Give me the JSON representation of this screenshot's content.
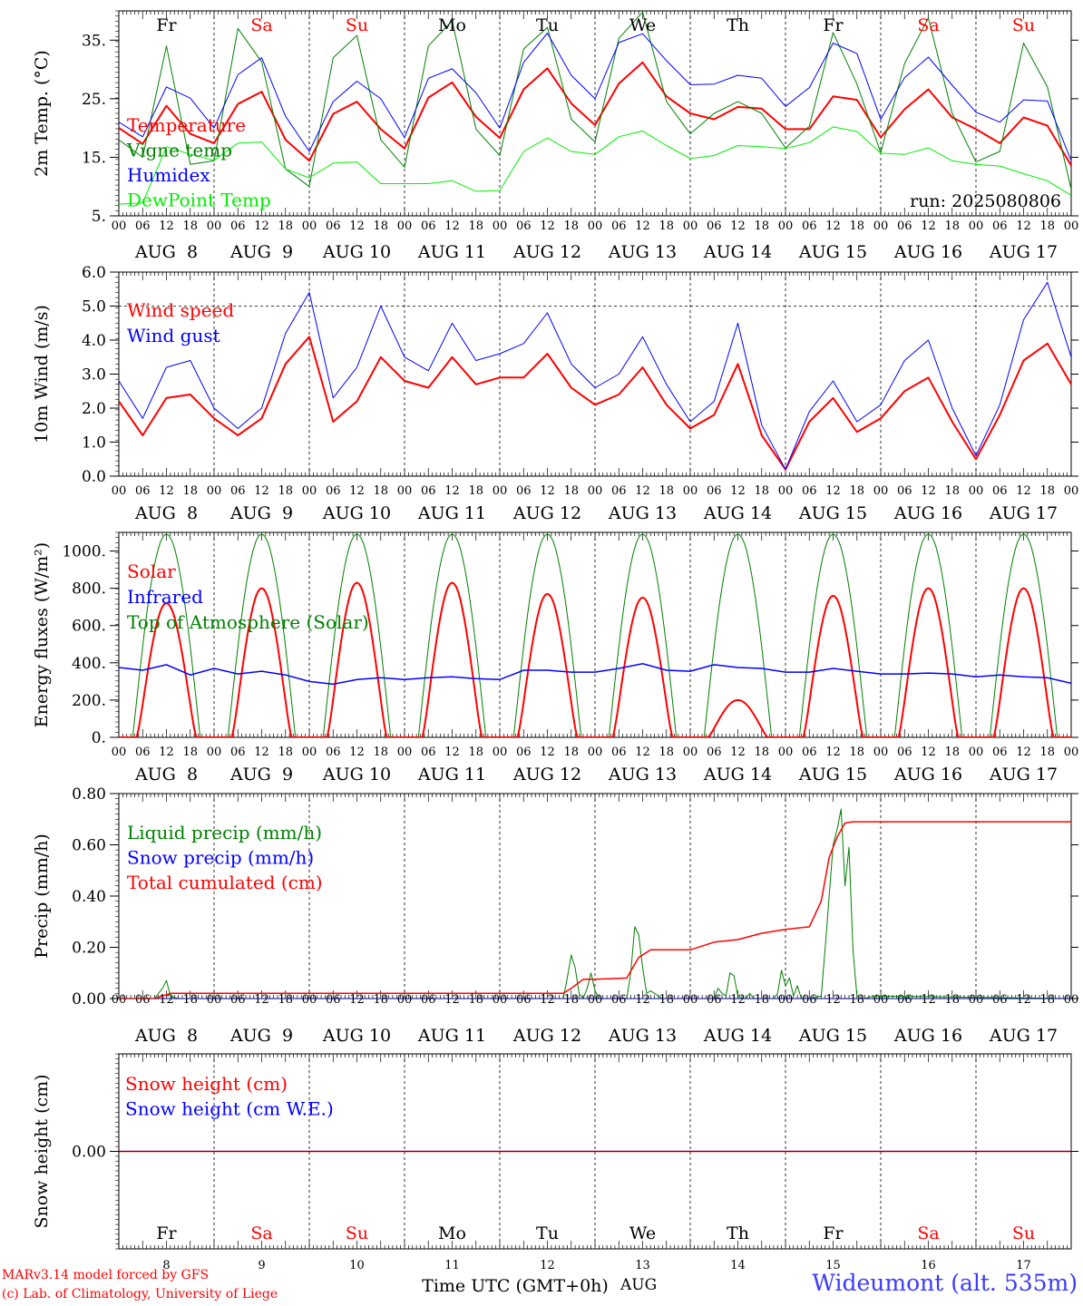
{
  "chart_data": [
    {
      "type": "line",
      "ylabel": "2m Temp. (°C)",
      "ylim": [
        5,
        40
      ],
      "yticks": [
        {
          "v": 5,
          "label": "5."
        },
        {
          "v": 15,
          "label": "15."
        },
        {
          "v": 25,
          "label": "25."
        },
        {
          "v": 35,
          "label": "35."
        }
      ],
      "annotation": "run: 2025080806",
      "day_names": [
        "Fr",
        "Sa",
        "Su",
        "Mo",
        "Tu",
        "We",
        "Th",
        "Fr",
        "Sa",
        "Su"
      ],
      "day_colors": [
        "#000000",
        "#ff0000",
        "#ff0000",
        "#000000",
        "#000000",
        "#000000",
        "#000000",
        "#000000",
        "#ff0000",
        "#ff0000"
      ],
      "x_hours": [
        0,
        6,
        12,
        18,
        24,
        30,
        36,
        42,
        48,
        54,
        60,
        66,
        72,
        78,
        84,
        90,
        96,
        102,
        108,
        114,
        120,
        126,
        132,
        138,
        144,
        150,
        156,
        162,
        168,
        174,
        180,
        186,
        192,
        198,
        204,
        210,
        216,
        222,
        228,
        234,
        240
      ],
      "series": [
        {
          "name": "Temperature",
          "color": "#ff0000",
          "width": 2,
          "values": [
            20,
            17.3,
            23.8,
            19,
            17.4,
            24.1,
            26.2,
            18,
            14.4,
            22.4,
            24.5,
            19.8,
            16.5,
            25.2,
            27.8,
            21.9,
            18.3,
            26.6,
            30.2,
            24.2,
            20.5,
            27.6,
            31.2,
            25.4,
            22.5,
            21.5,
            23.6,
            23.3,
            19.8,
            19.8,
            25.4,
            24.8,
            18.4,
            23.2,
            26.6,
            21.8,
            19.8,
            17.4,
            21.8,
            20.4,
            13.6
          ]
        },
        {
          "name": "Vigne temp",
          "color": "#008000",
          "width": 1,
          "values": [
            18,
            15,
            34,
            13.8,
            14.4,
            37,
            31.3,
            13,
            10,
            32,
            35.8,
            18,
            13.3,
            34,
            38.3,
            19.8,
            15.3,
            33.5,
            37.2,
            21.5,
            17.6,
            35.3,
            39.8,
            24.5,
            19,
            22.5,
            24.5,
            22.5,
            16.6,
            20.3,
            36.3,
            27.5,
            15.8,
            31,
            38.8,
            22.5,
            14.2,
            16,
            34.5,
            27,
            9.5
          ]
        },
        {
          "name": "Humidex",
          "color": "#0000ff",
          "width": 1,
          "values": [
            21,
            18.5,
            27,
            25.1,
            20,
            29.1,
            32,
            22,
            16,
            24.5,
            28,
            25,
            18.4,
            28.5,
            30.1,
            26,
            20,
            31.2,
            36.2,
            29,
            25,
            34.6,
            36.1,
            31.5,
            27.4,
            27.5,
            29,
            28.5,
            23.7,
            26.9,
            34.5,
            32.7,
            21.5,
            28.6,
            32.1,
            27.3,
            22.7,
            21,
            24.8,
            24.6,
            14.4
          ]
        },
        {
          "name": "DewPoint Temp",
          "color": "#00ee00",
          "width": 1,
          "values": [
            7,
            7.2,
            16.8,
            15.5,
            14.5,
            17.4,
            17.6,
            13,
            11.5,
            14,
            14.2,
            10.5,
            10.5,
            10.5,
            11,
            9.2,
            9.3,
            16,
            18.3,
            16,
            15.5,
            18.5,
            19.5,
            17,
            14.8,
            15.3,
            17,
            16.8,
            16.5,
            17.5,
            20.2,
            19.4,
            15.7,
            15.5,
            16.6,
            14.4,
            13.8,
            13.5,
            12.2,
            11,
            8.5
          ]
        }
      ]
    },
    {
      "type": "line",
      "ylabel": "10m Wind (m/s)",
      "ylim": [
        0,
        6
      ],
      "yticks": [
        {
          "v": 0,
          "label": "0.0"
        },
        {
          "v": 1,
          "label": "1.0"
        },
        {
          "v": 2,
          "label": "2.0"
        },
        {
          "v": 3,
          "label": "3.0"
        },
        {
          "v": 4,
          "label": "4.0"
        },
        {
          "v": 5,
          "label": "5.0"
        },
        {
          "v": 6,
          "label": "6.0"
        }
      ],
      "reference_line": 5,
      "x_hours": [
        0,
        6,
        12,
        18,
        24,
        30,
        36,
        42,
        48,
        54,
        60,
        66,
        72,
        78,
        84,
        90,
        96,
        102,
        108,
        114,
        120,
        126,
        132,
        138,
        144,
        150,
        156,
        162,
        168,
        174,
        180,
        186,
        192,
        198,
        204,
        210,
        216,
        222,
        228,
        234,
        240
      ],
      "series": [
        {
          "name": "Wind speed",
          "color": "#ff0000",
          "width": 2,
          "values": [
            2.2,
            1.2,
            2.3,
            2.4,
            1.7,
            1.2,
            1.7,
            3.3,
            4.1,
            1.6,
            2.2,
            3.5,
            2.8,
            2.6,
            3.5,
            2.7,
            2.9,
            2.9,
            3.6,
            2.6,
            2.1,
            2.4,
            3.2,
            2.1,
            1.4,
            1.8,
            3.3,
            1.2,
            0.2,
            1.6,
            2.3,
            1.3,
            1.7,
            2.5,
            2.9,
            1.6,
            0.5,
            1.8,
            3.4,
            3.9,
            2.7
          ]
        },
        {
          "name": "Wind gust",
          "color": "#0000ff",
          "width": 1,
          "values": [
            2.8,
            1.7,
            3.2,
            3.4,
            2,
            1.4,
            2,
            4.2,
            5.4,
            2.3,
            3.2,
            5,
            3.5,
            3.1,
            4.5,
            3.4,
            3.6,
            3.9,
            4.8,
            3.3,
            2.6,
            3,
            4.1,
            2.7,
            1.6,
            2.2,
            4.5,
            1.5,
            0.2,
            1.9,
            2.8,
            1.6,
            2.1,
            3.4,
            4,
            2,
            0.6,
            2.1,
            4.6,
            5.7,
            3.5
          ]
        }
      ]
    },
    {
      "type": "line",
      "ylabel": "Energy fluxes (W/m²)",
      "ylim": [
        0,
        1100
      ],
      "yticks": [
        {
          "v": 0,
          "label": "0."
        },
        {
          "v": 200,
          "label": "200."
        },
        {
          "v": 400,
          "label": "400."
        },
        {
          "v": 600,
          "label": "600."
        },
        {
          "v": 800,
          "label": "800."
        },
        {
          "v": 1000,
          "label": "1000."
        }
      ],
      "toa_peak": 1090,
      "solar_peaks": [
        720,
        800,
        830,
        830,
        770,
        750,
        200,
        760,
        800,
        800
      ],
      "infrared": {
        "x_hours": [
          0,
          6,
          12,
          18,
          24,
          30,
          36,
          42,
          48,
          54,
          60,
          66,
          72,
          78,
          84,
          90,
          96,
          102,
          108,
          114,
          120,
          126,
          132,
          138,
          144,
          150,
          156,
          162,
          168,
          174,
          180,
          186,
          192,
          198,
          204,
          210,
          216,
          222,
          228,
          234,
          240
        ],
        "values": [
          375,
          360,
          390,
          335,
          370,
          340,
          355,
          335,
          300,
          285,
          310,
          320,
          310,
          320,
          325,
          315,
          310,
          360,
          360,
          350,
          350,
          370,
          395,
          360,
          355,
          390,
          375,
          370,
          350,
          350,
          370,
          355,
          340,
          340,
          345,
          340,
          325,
          335,
          325,
          320,
          290
        ]
      },
      "series": [
        {
          "name": "Solar",
          "color": "#ff0000"
        },
        {
          "name": "Infrared",
          "color": "#0000ff"
        },
        {
          "name": "Top of Atmosphere (Solar)",
          "color": "#008000"
        }
      ]
    },
    {
      "type": "line",
      "ylabel": "Precip (mm/h)",
      "ylim": [
        0,
        0.8
      ],
      "yticks": [
        {
          "v": 0,
          "label": "0.00"
        },
        {
          "v": 0.2,
          "label": "0.20"
        },
        {
          "v": 0.4,
          "label": "0.40"
        },
        {
          "v": 0.6,
          "label": "0.60"
        },
        {
          "v": 0.8,
          "label": "0.80"
        }
      ],
      "series": [
        {
          "name": "Liquid precip (mm/h)",
          "color": "#008000",
          "width": 1,
          "x_hours": [
            0,
            9,
            11,
            12,
            13,
            15,
            24,
            112,
            113,
            114,
            115,
            116,
            117,
            118,
            119,
            120,
            121,
            122,
            128,
            129,
            130,
            131,
            132,
            133,
            134,
            136,
            137,
            150,
            151,
            152,
            153,
            154,
            155,
            156,
            157,
            158,
            159,
            160,
            161,
            162,
            165,
            166,
            167,
            168,
            169,
            170,
            171,
            172,
            174,
            177,
            178,
            180,
            181,
            182,
            183,
            184,
            185,
            186,
            187,
            188,
            190,
            240
          ],
          "values": [
            0,
            0,
            0.04,
            0.07,
            0.01,
            0,
            0,
            0,
            0.08,
            0.17,
            0.12,
            0.02,
            0,
            0.04,
            0.1,
            0.03,
            0,
            0,
            0,
            0.1,
            0.28,
            0.25,
            0.12,
            0.02,
            0.03,
            0.01,
            0,
            0,
            0.04,
            0.02,
            0.01,
            0.1,
            0.09,
            0.01,
            0,
            0,
            0.02,
            0,
            0,
            0,
            0,
            0.02,
            0.11,
            0.05,
            0.08,
            0.01,
            0.05,
            0,
            0,
            0.01,
            0.2,
            0.6,
            0.66,
            0.74,
            0.44,
            0.59,
            0.19,
            0.01,
            0,
            0,
            0.01,
            0
          ]
        },
        {
          "name": "Snow precip (mm/h)",
          "color": "#0000ff",
          "width": 1,
          "x_hours": [
            0,
            240
          ],
          "values": [
            0,
            0
          ]
        },
        {
          "name": "Total cumulated (cm)",
          "color": "#ff0000",
          "width": 1.5,
          "x_hours": [
            0,
            9,
            11,
            13,
            112,
            114,
            117,
            120,
            128,
            131,
            134,
            144,
            150,
            156,
            162,
            168,
            174,
            177,
            179,
            181,
            183,
            185,
            240
          ],
          "values": [
            0,
            0,
            0.01,
            0.02,
            0.02,
            0.04,
            0.075,
            0.075,
            0.08,
            0.16,
            0.19,
            0.19,
            0.22,
            0.23,
            0.255,
            0.27,
            0.28,
            0.38,
            0.55,
            0.63,
            0.685,
            0.69,
            0.69
          ]
        }
      ]
    },
    {
      "type": "line",
      "ylabel": "Snow height (cm)",
      "ylim": [
        -1,
        1
      ],
      "yticks": [
        {
          "v": 0,
          "label": "0.00"
        }
      ],
      "series": [
        {
          "name": "Snow height (cm)",
          "color": "#ff0000",
          "width": 1.5,
          "x_hours": [
            0,
            240
          ],
          "values": [
            0,
            0
          ]
        },
        {
          "name": "Snow height (cm W.E.)",
          "color": "#0000ff",
          "width": 1,
          "x_hours": [
            0,
            240
          ],
          "values": [
            0,
            0
          ]
        }
      ],
      "day_names": [
        "Fr",
        "Sa",
        "Su",
        "Mo",
        "Tu",
        "We",
        "Th",
        "Fr",
        "Sa",
        "Su"
      ],
      "day_numbers": [
        "8",
        "9",
        "10",
        "11",
        "12",
        "13",
        "14",
        "15",
        "16",
        "17"
      ],
      "xlabel": "Time UTC (GMT+0h)",
      "month": "AUG"
    }
  ],
  "date_labels": [
    "AUG  8",
    "AUG  9",
    "AUG 10",
    "AUG 11",
    "AUG 12",
    "AUG 13",
    "AUG 14",
    "AUG 15",
    "AUG 16",
    "AUG 17"
  ],
  "hour_labels": [
    "00",
    "06",
    "12",
    "18"
  ],
  "footer": {
    "model_credit": "MARv3.14 model forced by GFS",
    "lab_credit": "(c) Lab. of Climatology, University of Liege",
    "station": "Wideumont (alt. 535m)"
  }
}
